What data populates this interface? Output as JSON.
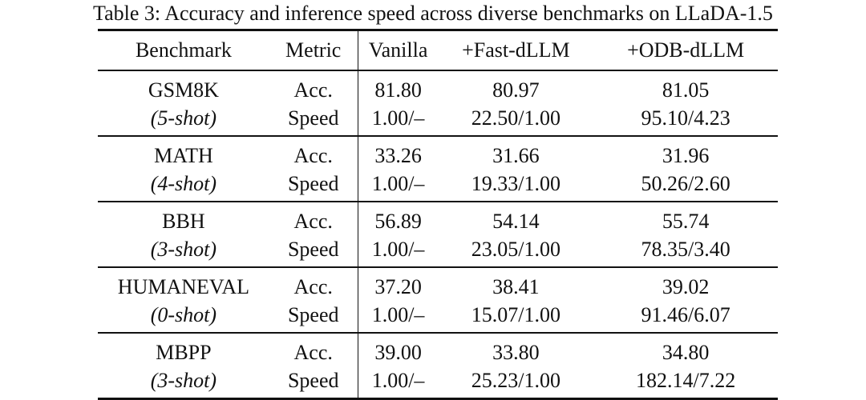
{
  "caption": "Table 3: Accuracy and inference speed across diverse benchmarks on LLaDA-1.5",
  "headers": {
    "benchmark": "Benchmark",
    "metric": "Metric",
    "vanilla": "Vanilla",
    "fast": "+Fast-dLLM",
    "odb": "+ODB-dLLM"
  },
  "groups": [
    {
      "name": "GSM8K",
      "shot": "(5-shot)",
      "acc": {
        "metric": "Acc.",
        "vanilla": "81.80",
        "fast": "80.97",
        "odb": "81.05"
      },
      "speed": {
        "metric": "Speed",
        "vanilla": "1.00/–",
        "fast": "22.50/1.00",
        "odb": "95.10/4.23"
      }
    },
    {
      "name": "MATH",
      "shot": "(4-shot)",
      "acc": {
        "metric": "Acc.",
        "vanilla": "33.26",
        "fast": "31.66",
        "odb": "31.96"
      },
      "speed": {
        "metric": "Speed",
        "vanilla": "1.00/–",
        "fast": "19.33/1.00",
        "odb": "50.26/2.60"
      }
    },
    {
      "name": "BBH",
      "shot": "(3-shot)",
      "acc": {
        "metric": "Acc.",
        "vanilla": "56.89",
        "fast": "54.14",
        "odb": "55.74"
      },
      "speed": {
        "metric": "Speed",
        "vanilla": "1.00/–",
        "fast": "23.05/1.00",
        "odb": "78.35/3.40"
      }
    },
    {
      "name": "HUMANEVAL",
      "shot": "(0-shot)",
      "acc": {
        "metric": "Acc.",
        "vanilla": "37.20",
        "fast": "38.41",
        "odb": "39.02"
      },
      "speed": {
        "metric": "Speed",
        "vanilla": "1.00/–",
        "fast": "15.07/1.00",
        "odb": "91.46/6.07"
      }
    },
    {
      "name": "MBPP",
      "shot": "(3-shot)",
      "acc": {
        "metric": "Acc.",
        "vanilla": "39.00",
        "fast": "33.80",
        "odb": "34.80"
      },
      "speed": {
        "metric": "Speed",
        "vanilla": "1.00/–",
        "fast": "25.23/1.00",
        "odb": "182.14/7.22"
      }
    }
  ]
}
